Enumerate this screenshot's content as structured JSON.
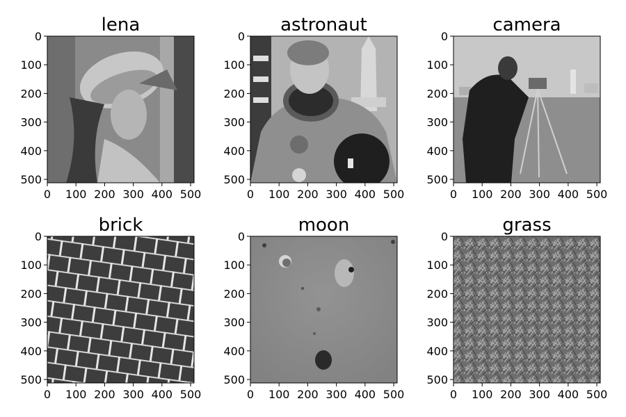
{
  "figure": {
    "background": "#ffffff",
    "axis_ticks": [
      0,
      100,
      200,
      300,
      400,
      500
    ],
    "axis_range": [
      0,
      512
    ],
    "panels": [
      {
        "title": "lena",
        "content": "grayscale portrait of a woman wearing a wide-brim hat",
        "tone": "#8a8a8a"
      },
      {
        "title": "astronaut",
        "content": "grayscale portrait of an astronaut in a spacesuit with a flag and space shuttle behind",
        "tone": "#9a9a9a"
      },
      {
        "title": "camera",
        "content": "grayscale photo of a cameraman with a tripod on a lawn",
        "tone": "#a5a5a5"
      },
      {
        "title": "brick",
        "content": "grayscale brick wall pattern in perspective",
        "tone": "#3a3a3a"
      },
      {
        "title": "moon",
        "content": "grayscale lunar surface texture with craters",
        "tone": "#8c8c8c"
      },
      {
        "title": "grass",
        "content": "grayscale dense grass texture",
        "tone": "#7a7a7a"
      }
    ]
  }
}
